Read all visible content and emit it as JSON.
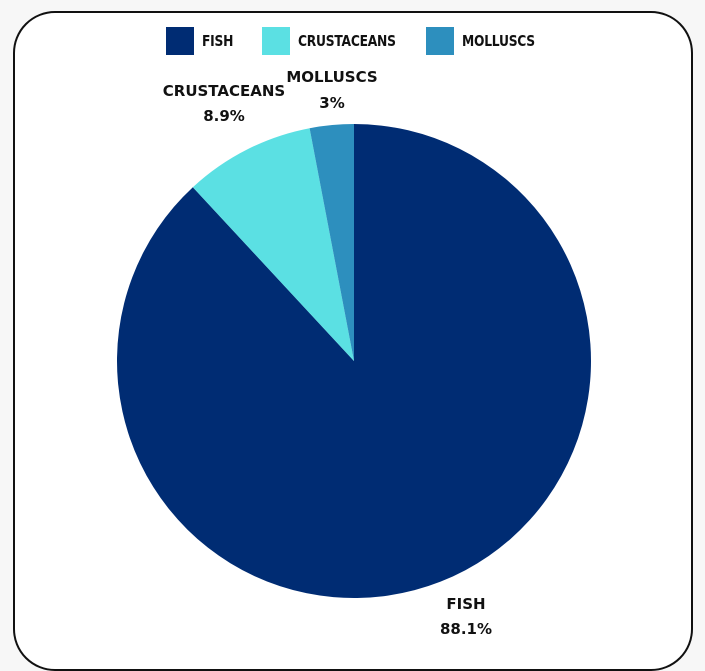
{
  "chart_data": {
    "type": "pie",
    "categories": [
      "FISH",
      "CRUSTACEANS",
      "MOLLUSCS"
    ],
    "values": [
      88.1,
      8.9,
      3
    ],
    "colors": [
      "#002C73",
      "#5BE0E3",
      "#2D8FBE"
    ],
    "data_labels": [
      {
        "name": "FISH",
        "value": "88.1%"
      },
      {
        "name": "CRUSTACEANS",
        "value": "8.9%"
      },
      {
        "name": "MOLLUSCS",
        "value": "3%"
      }
    ],
    "legend_placement": "top",
    "start_angle": "12 o'clock",
    "direction": "clockwise"
  }
}
